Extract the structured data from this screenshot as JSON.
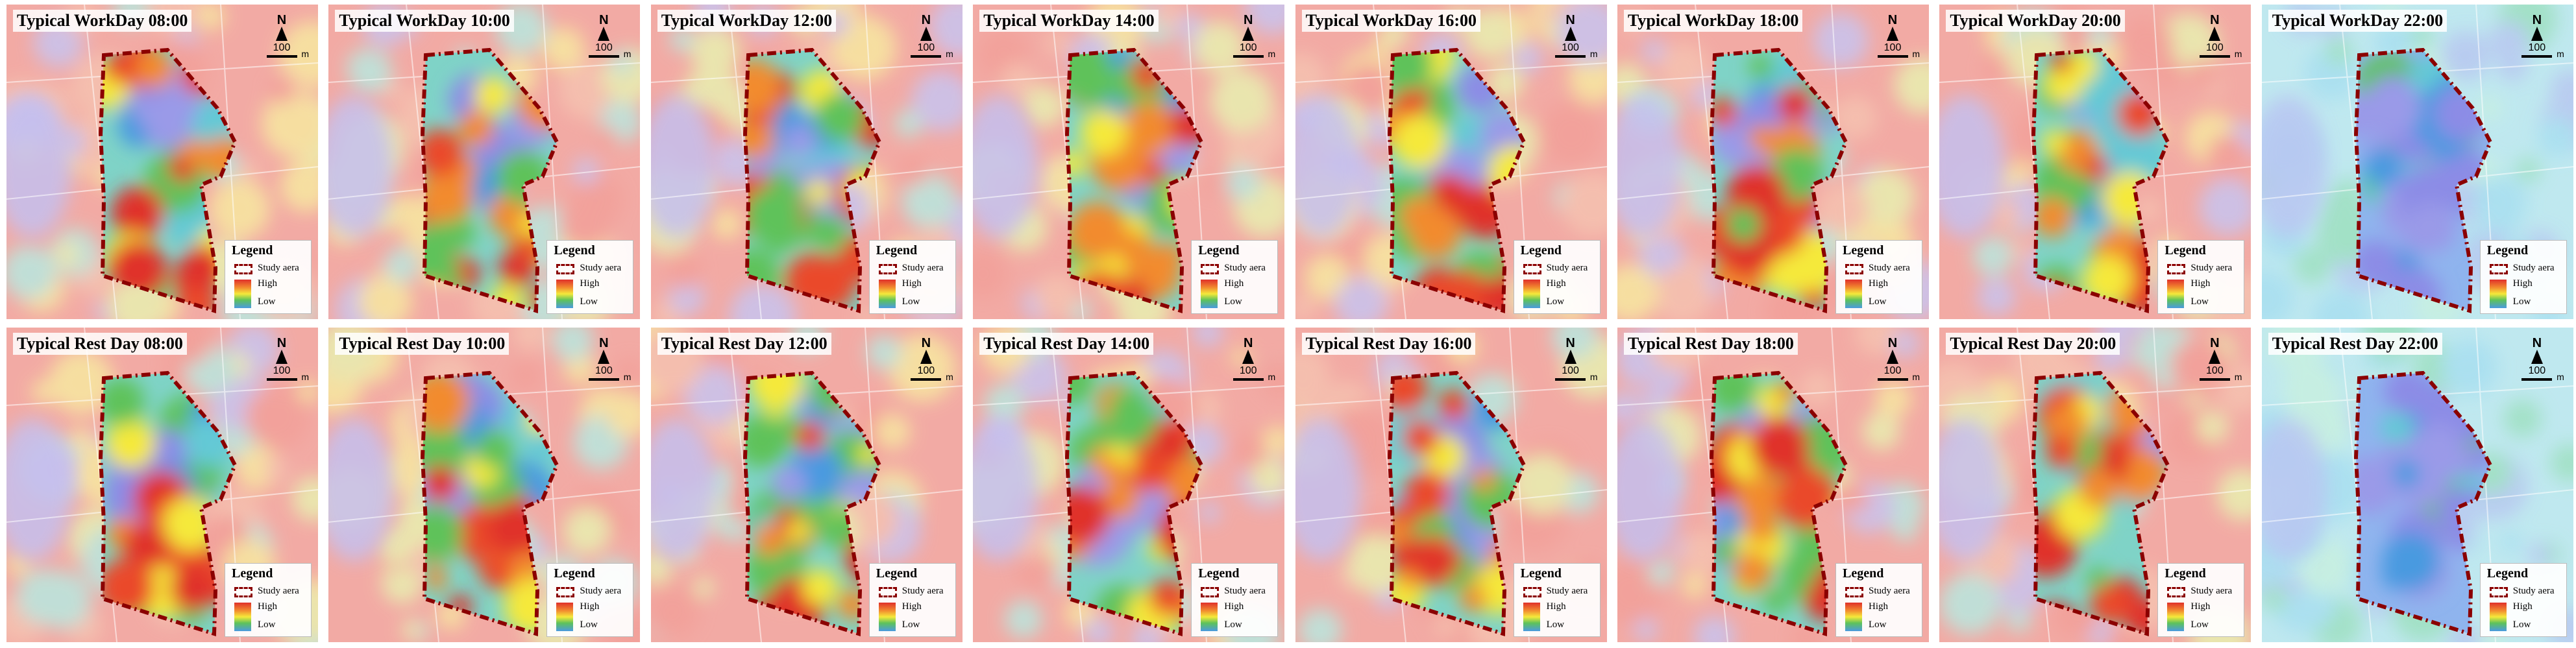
{
  "panels": [
    {
      "title": "Typical WorkDay  08:00",
      "level": 0.45
    },
    {
      "title": "Typical WorkDay  10:00",
      "level": 0.78
    },
    {
      "title": "Typical WorkDay  12:00",
      "level": 0.72
    },
    {
      "title": "Typical WorkDay  14:00",
      "level": 0.7
    },
    {
      "title": "Typical WorkDay  16:00",
      "level": 0.74
    },
    {
      "title": "Typical WorkDay  18:00",
      "level": 0.62
    },
    {
      "title": "Typical WorkDay  20:00",
      "level": 0.55
    },
    {
      "title": "Typical WorkDay  22:00",
      "level": 0.2
    },
    {
      "title": "Typical Rest Day  08:00",
      "level": 0.4
    },
    {
      "title": "Typical Rest Day  10:00",
      "level": 0.58
    },
    {
      "title": "Typical Rest Day  12:00",
      "level": 0.66
    },
    {
      "title": "Typical Rest Day  14:00",
      "level": 0.62
    },
    {
      "title": "Typical Rest Day  16:00",
      "level": 0.68
    },
    {
      "title": "Typical Rest Day  18:00",
      "level": 0.66
    },
    {
      "title": "Typical Rest Day  20:00",
      "level": 0.56
    },
    {
      "title": "Typical Rest Day  22:00",
      "level": 0.18
    }
  ],
  "north_arrow": {
    "label": "N",
    "scale": "100",
    "unit": "m"
  },
  "legend": {
    "title": "Legend",
    "study_area": "Study aera",
    "high": "High",
    "low": "Low"
  },
  "colors": {
    "study_boundary": "#8b0000",
    "ramp": [
      "#e0302a",
      "#f28b2f",
      "#f5e93a",
      "#5ec25a",
      "#4a9ae0",
      "#8c8ce6"
    ]
  }
}
